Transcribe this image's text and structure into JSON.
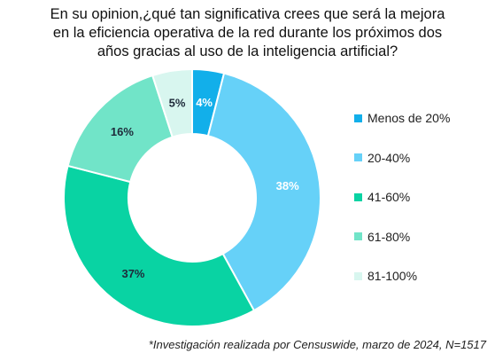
{
  "chart_data": {
    "type": "pie",
    "title_lines": [
      "En su opinion,¿qué tan significativa crees que será la mejora",
      "en la eficiencia operativa de la red durante los próximos dos",
      "años gracias al uso de la inteligencia artificial?"
    ],
    "categories": [
      "Menos de 20%",
      "20-40%",
      "41-60%",
      "61-80%",
      "81-100%"
    ],
    "values": [
      4,
      38,
      37,
      16,
      5
    ],
    "value_labels": [
      "4%",
      "38%",
      "37%",
      "16%",
      "5%"
    ],
    "colors": [
      "#12afea",
      "#66d1f8",
      "#09d3a3",
      "#71e4c8",
      "#d8f6ef"
    ],
    "label_colors": [
      "#ffffff",
      "#ffffff",
      "#1e2a3a",
      "#1e2a3a",
      "#1e2a3a"
    ],
    "donut": true,
    "legend_position": "right",
    "footnote": "*Investigación realizada por Censuswide, marzo de 2024, N=1517"
  }
}
